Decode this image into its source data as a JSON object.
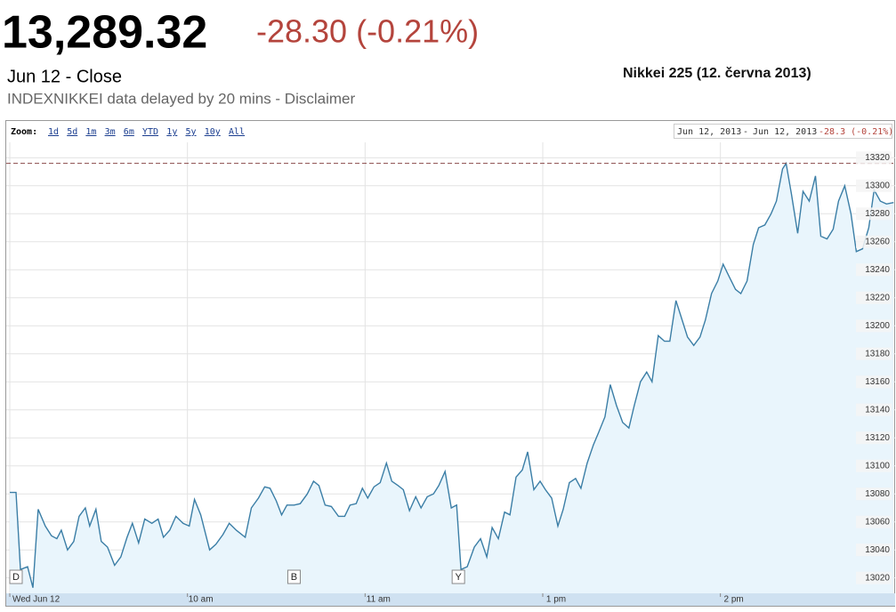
{
  "header": {
    "price": "13,289.32",
    "change": "-28.30 (-0.21%)",
    "close_label": "Jun 12 - Close",
    "delay_note": "INDEXNIKKEI data delayed by 20 mins - Disclaimer",
    "caption": "Nikkei 225 (12. června 2013)"
  },
  "toolbar": {
    "zoom_label": "Zoom:",
    "zoom_links": [
      "1d",
      "5d",
      "1m",
      "3m",
      "6m",
      "YTD",
      "1y",
      "5y",
      "10y",
      "All"
    ],
    "range_from": "Jun 12, 2013",
    "range_sep": "-",
    "range_to": "Jun 12, 2013",
    "range_change": "-28.3 (-0.21%)"
  },
  "chart_data": {
    "type": "area",
    "color": "#3b7ea6",
    "fill": "#e9f5fc",
    "grid": true,
    "x": [
      0,
      2.1,
      3.6,
      6,
      7.8,
      9.6,
      12,
      14.1,
      15.9,
      17.4,
      19.5,
      21.6,
      23.4,
      25.5,
      27,
      29.1,
      30.9,
      33,
      35.4,
      37.5,
      39.6,
      41.4,
      43.5,
      45.6,
      48,
      50.1,
      51.9,
      54,
      56.1,
      58.5,
      60.6,
      62.4,
      64.5,
      67.5,
      69.6,
      72,
      74.1,
      76.5,
      79.5,
      81.6,
      84,
      86.1,
      87.9,
      90,
      91.8,
      93.6,
      96,
      98.1,
      100.5,
      102.6,
      104.4,
      106.5,
      108.6,
      111,
      113.1,
      114.9,
      117,
      119.1,
      120.9,
      123,
      125.1,
      127.2,
      129,
      131.1,
      132.9,
      135,
      137.1,
      138.9,
      141,
      143.1,
      144.9,
      147,
      149.1,
      150.9,
      152.4,
      154.5,
      156.9,
      159,
      161.1,
      162.9,
      165,
      167.1,
      168.9,
      171,
      173.1,
      174.9,
      177,
      179.1,
      180.9,
      183,
      185.1,
      186.9,
      189,
      191.1,
      192.9,
      195,
      197.1,
      198.9,
      201,
      202.8,
      204.9,
      207,
      209.1,
      210.9,
      213,
      215.1,
      216.9,
      219,
      221.1,
      222.9,
      225,
      227.1,
      228.9,
      231,
      233.1,
      234.9,
      237,
      239.1,
      240.9,
      243,
      245.1,
      246.9,
      249,
      251.1,
      252.9,
      255,
      257.1,
      258.9,
      261,
      262.2,
      264,
      266.1,
      267.9,
      270,
      272.1,
      273.9,
      276,
      278.1,
      279.9,
      282,
      284.1,
      285.9,
      288,
      290.1,
      291.9,
      294,
      296.1,
      298.5
    ],
    "values": [
      13081,
      13081,
      13026,
      13028,
      13013,
      13069,
      13057,
      13050,
      13048,
      13054,
      13040,
      13046,
      13064,
      13070,
      13057,
      13069,
      13046,
      13042,
      13029,
      13035,
      13049,
      13059,
      13045,
      13062,
      13059,
      13062,
      13049,
      13054,
      13064,
      13059,
      13057,
      13076,
      13065,
      13040,
      13044,
      13051,
      13059,
      13054,
      13049,
      13070,
      13077,
      13085,
      13084,
      13075,
      13065,
      13072,
      13072,
      13073,
      13080,
      13089,
      13086,
      13072,
      13071,
      13064,
      13064,
      13072,
      13073,
      13084,
      13077,
      13085,
      13088,
      13102,
      13089,
      13086,
      13083,
      13068,
      13078,
      13070,
      13078,
      13080,
      13086,
      13096,
      13070,
      13072,
      13026,
      13028,
      13042,
      13048,
      13035,
      13056,
      13048,
      13067,
      13065,
      13092,
      13097,
      13110,
      13083,
      13089,
      13083,
      13077,
      13057,
      13069,
      13088,
      13091,
      13084,
      13102,
      13115,
      13124,
      13135,
      13158,
      13143,
      13131,
      13127,
      13143,
      13160,
      13167,
      13160,
      13193,
      13189,
      13189,
      13218,
      13204,
      13192,
      13186,
      13192,
      13204,
      13223,
      13232,
      13244,
      13235,
      13226,
      13223,
      13232,
      13258,
      13270,
      13272,
      13280,
      13289,
      13312,
      13316,
      13294,
      13266,
      13296,
      13289,
      13307,
      13264,
      13262,
      13269,
      13289,
      13300,
      13280,
      13253,
      13255,
      13270,
      13297,
      13289,
      13287,
      13288
    ],
    "xlim": [
      -1.2,
      299
    ],
    "xticks": [
      {
        "value": 0,
        "label": "Wed Jun 12"
      },
      {
        "value": 60,
        "label": "10 am"
      },
      {
        "value": 120,
        "label": "11 am"
      },
      {
        "value": 180,
        "label": "1 pm"
      },
      {
        "value": 240,
        "label": "2 pm"
      }
    ],
    "ylim": [
      13009,
      13331
    ],
    "yticks": [
      13020,
      13040,
      13060,
      13080,
      13100,
      13120,
      13140,
      13160,
      13180,
      13200,
      13220,
      13240,
      13260,
      13280,
      13300,
      13320
    ],
    "high_line": 13316,
    "annotations": [
      {
        "x": 2.1,
        "text": "D"
      },
      {
        "x": 96,
        "text": "B"
      },
      {
        "x": 151.5,
        "text": "Y"
      }
    ]
  }
}
